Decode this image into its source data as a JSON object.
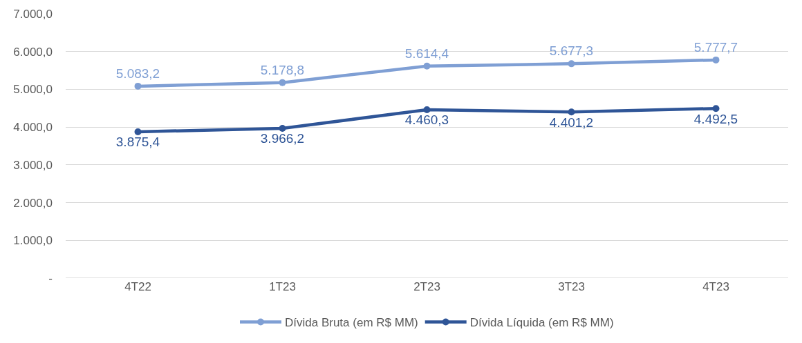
{
  "chart_data": {
    "type": "line",
    "categories": [
      "4T22",
      "1T23",
      "2T23",
      "3T23",
      "4T23"
    ],
    "series": [
      {
        "name": "Dívida Bruta (em R$ MM)",
        "color": "#7f9fd4",
        "values": [
          5083.2,
          5178.8,
          5614.4,
          5677.3,
          5777.7
        ],
        "value_labels": [
          "5.083,2",
          "5.178,8",
          "5.614,4",
          "5.677,3",
          "5.777,7"
        ]
      },
      {
        "name": "Dívida Líquida (em R$ MM)",
        "color": "#2f5597",
        "values": [
          3875.4,
          3966.2,
          4460.3,
          4401.2,
          4492.5
        ],
        "value_labels": [
          "3.875,4",
          "3.966,2",
          "4.460,3",
          "4.401,2",
          "4.492,5"
        ]
      }
    ],
    "ylim": [
      0,
      7000
    ],
    "yticks": [
      {
        "value": 0,
        "label": "-"
      },
      {
        "value": 1000,
        "label": "1.000,0"
      },
      {
        "value": 2000,
        "label": "2.000,0"
      },
      {
        "value": 3000,
        "label": "3.000,0"
      },
      {
        "value": 4000,
        "label": "4.000,0"
      },
      {
        "value": 5000,
        "label": "5.000,0"
      },
      {
        "value": 6000,
        "label": "6.000,0"
      },
      {
        "value": 7000,
        "label": "7.000,0"
      }
    ],
    "grid": "y",
    "legend": "bottom",
    "marker": "circle",
    "line_style": "solid"
  }
}
